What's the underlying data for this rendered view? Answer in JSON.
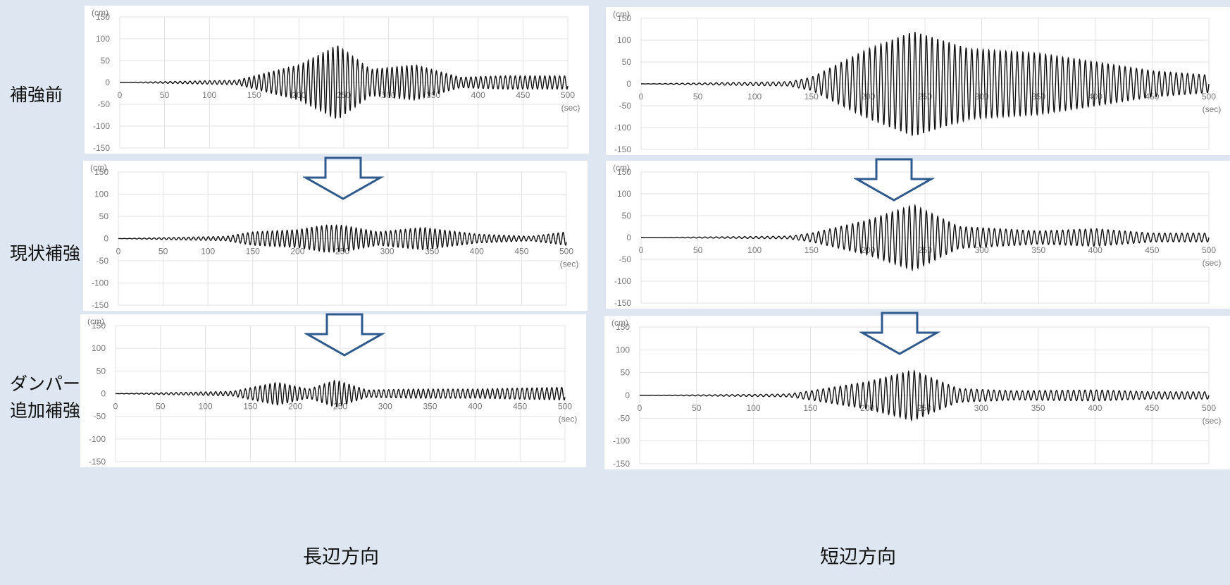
{
  "row_labels": [
    "補強前",
    "現状補強",
    "ダンパー",
    "追加補強"
  ],
  "column_labels": [
    "長辺方向",
    "短辺方向"
  ],
  "chart_data": [
    {
      "type": "line",
      "column": "長辺方向",
      "row": "補強前",
      "ylabel": "(cm)",
      "xlabel": "(sec)",
      "xlim": [
        0,
        500
      ],
      "ylim": [
        -150,
        150
      ],
      "x_ticks": [
        0,
        50,
        100,
        150,
        200,
        250,
        300,
        350,
        400,
        450,
        500
      ],
      "y_ticks": [
        150,
        100,
        50,
        0,
        -50,
        -100,
        -150
      ],
      "grid": true,
      "envelope": {
        "x": [
          0,
          130,
          150,
          200,
          243,
          280,
          330,
          380,
          430,
          500
        ],
        "amplitude": [
          0,
          5,
          15,
          40,
          85,
          30,
          40,
          12,
          15,
          15
        ]
      },
      "period_sec": 5.5
    },
    {
      "type": "line",
      "column": "長辺方向",
      "row": "現状補強",
      "ylabel": "(cm)",
      "xlabel": "(sec)",
      "xlim": [
        0,
        500
      ],
      "ylim": [
        -150,
        150
      ],
      "x_ticks": [
        0,
        50,
        100,
        150,
        200,
        250,
        300,
        350,
        400,
        450,
        500
      ],
      "y_ticks": [
        150,
        100,
        50,
        0,
        -50,
        -100,
        -150
      ],
      "grid": true,
      "envelope": {
        "x": [
          0,
          120,
          150,
          200,
          230,
          250,
          290,
          340,
          400,
          460,
          500
        ],
        "amplitude": [
          0,
          5,
          15,
          20,
          30,
          30,
          15,
          25,
          10,
          5,
          15
        ]
      },
      "period_sec": 5.5
    },
    {
      "type": "line",
      "column": "長辺方向",
      "row": "ダンパー 追加補強",
      "ylabel": "(cm)",
      "xlabel": "(sec)",
      "xlim": [
        0,
        500
      ],
      "ylim": [
        -150,
        150
      ],
      "x_ticks": [
        0,
        50,
        100,
        150,
        200,
        250,
        300,
        350,
        400,
        450,
        500
      ],
      "y_ticks": [
        150,
        100,
        50,
        0,
        -50,
        -100,
        -150
      ],
      "grid": true,
      "envelope": {
        "x": [
          0,
          130,
          180,
          215,
          245,
          280,
          330,
          400,
          500
        ],
        "amplitude": [
          0,
          5,
          25,
          10,
          30,
          8,
          10,
          10,
          14
        ]
      },
      "period_sec": 5.5
    },
    {
      "type": "line",
      "column": "短辺方向",
      "row": "補強前",
      "ylabel": "(cm)",
      "xlabel": "(sec)",
      "xlim": [
        0,
        500
      ],
      "ylim": [
        -150,
        150
      ],
      "x_ticks": [
        0,
        50,
        100,
        150,
        200,
        250,
        300,
        350,
        400,
        450,
        500
      ],
      "y_ticks": [
        150,
        100,
        50,
        0,
        -50,
        -100,
        -150
      ],
      "grid": true,
      "envelope": {
        "x": [
          0,
          130,
          150,
          200,
          240,
          290,
          350,
          400,
          450,
          500
        ],
        "amplitude": [
          0,
          5,
          15,
          80,
          120,
          80,
          70,
          50,
          30,
          20
        ]
      },
      "period_sec": 5
    },
    {
      "type": "line",
      "column": "短辺方向",
      "row": "現状補強",
      "ylabel": "(cm)",
      "xlabel": "(sec)",
      "xlim": [
        0,
        500
      ],
      "ylim": [
        -150,
        150
      ],
      "x_ticks": [
        0,
        50,
        100,
        150,
        200,
        250,
        300,
        350,
        400,
        450,
        500
      ],
      "y_ticks": [
        150,
        100,
        50,
        0,
        -50,
        -100,
        -150
      ],
      "grid": true,
      "envelope": {
        "x": [
          0,
          130,
          150,
          200,
          240,
          280,
          350,
          400,
          450,
          500
        ],
        "amplitude": [
          0,
          3,
          10,
          40,
          75,
          25,
          15,
          20,
          10,
          10
        ]
      },
      "period_sec": 5
    },
    {
      "type": "line",
      "column": "短辺方向",
      "row": "ダンパー 追加補強",
      "ylabel": "(cm)",
      "xlabel": "(sec)",
      "xlim": [
        0,
        500
      ],
      "ylim": [
        -150,
        150
      ],
      "x_ticks": [
        0,
        50,
        100,
        150,
        200,
        250,
        300,
        350,
        400,
        450,
        500
      ],
      "y_ticks": [
        150,
        100,
        50,
        0,
        -50,
        -100,
        -150
      ],
      "grid": true,
      "envelope": {
        "x": [
          0,
          130,
          150,
          200,
          240,
          280,
          330,
          400,
          450,
          500
        ],
        "amplitude": [
          0,
          3,
          10,
          30,
          55,
          15,
          10,
          12,
          8,
          8
        ]
      },
      "period_sec": 5
    }
  ],
  "colors": {
    "arrow_stroke": "#2f5a8e",
    "line": "#111111",
    "grid": "#e2e2e2",
    "background": "#dde6f1",
    "panel": "#ffffff"
  }
}
